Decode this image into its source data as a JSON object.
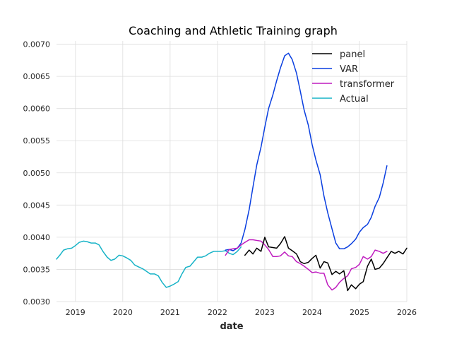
{
  "chart_data": {
    "type": "line",
    "title": "Coaching and Athletic Training graph",
    "xlabel": "date",
    "ylabel": "",
    "xlim": [
      2018.6,
      2026.0
    ],
    "ylim": [
      0.003,
      0.00705
    ],
    "x_ticks": [
      2019,
      2020,
      2021,
      2022,
      2023,
      2024,
      2025,
      2026
    ],
    "x_tick_labels": [
      "2019",
      "2020",
      "2021",
      "2022",
      "2023",
      "2024",
      "2025",
      "2026"
    ],
    "y_ticks": [
      0.003,
      0.0035,
      0.004,
      0.0045,
      0.005,
      0.0055,
      0.006,
      0.0065,
      0.007
    ],
    "y_tick_labels": [
      "0.0030",
      "0.0035",
      "0.0040",
      "0.0045",
      "0.0050",
      "0.0055",
      "0.0060",
      "0.0065",
      "0.0070"
    ],
    "grid": true,
    "legend_position": "top-right",
    "series": [
      {
        "name": "panel",
        "color": "#000000",
        "x": [
          2022.58,
          2022.67,
          2022.75,
          2022.83,
          2022.92,
          2023.0,
          2023.08,
          2023.17,
          2023.25,
          2023.33,
          2023.42,
          2023.5,
          2023.58,
          2023.67,
          2023.75,
          2023.83,
          2023.92,
          2024.0,
          2024.08,
          2024.17,
          2024.25,
          2024.33,
          2024.42,
          2024.5,
          2024.58,
          2024.67,
          2024.75,
          2024.83,
          2024.92,
          2025.0,
          2025.08,
          2025.17,
          2025.25,
          2025.33,
          2025.42,
          2025.5,
          2025.58,
          2025.67,
          2025.75,
          2025.83,
          2025.92,
          2026.0
        ],
        "y": [
          0.00372,
          0.0038,
          0.00374,
          0.00383,
          0.00378,
          0.004,
          0.00385,
          0.00384,
          0.00383,
          0.0039,
          0.00401,
          0.00383,
          0.00379,
          0.00374,
          0.00362,
          0.00359,
          0.00361,
          0.00367,
          0.00372,
          0.00352,
          0.00362,
          0.0036,
          0.00342,
          0.00347,
          0.00343,
          0.00348,
          0.00317,
          0.00326,
          0.0032,
          0.00327,
          0.00331,
          0.00355,
          0.00366,
          0.0035,
          0.00352,
          0.00359,
          0.00368,
          0.00378,
          0.00375,
          0.00378,
          0.00374,
          0.00383
        ]
      },
      {
        "name": "VAR",
        "color": "#0a3fe0",
        "x": [
          2022.17,
          2022.25,
          2022.33,
          2022.42,
          2022.5,
          2022.58,
          2022.67,
          2022.75,
          2022.83,
          2022.92,
          2023.0,
          2023.08,
          2023.17,
          2023.25,
          2023.33,
          2023.42,
          2023.5,
          2023.58,
          2023.67,
          2023.75,
          2023.83,
          2023.92,
          2024.0,
          2024.08,
          2024.17,
          2024.25,
          2024.33,
          2024.42,
          2024.5,
          2024.58,
          2024.67,
          2024.75,
          2024.83,
          2024.92,
          2025.0,
          2025.08,
          2025.17,
          2025.25,
          2025.33,
          2025.42,
          2025.5,
          2025.58
        ],
        "y": [
          0.0038,
          0.00381,
          0.00379,
          0.00383,
          0.00391,
          0.00412,
          0.00443,
          0.00478,
          0.00512,
          0.0054,
          0.00571,
          0.006,
          0.00621,
          0.00643,
          0.00663,
          0.00682,
          0.00686,
          0.00676,
          0.00655,
          0.00627,
          0.00598,
          0.00574,
          0.00544,
          0.0052,
          0.00497,
          0.00464,
          0.00438,
          0.00413,
          0.00391,
          0.00382,
          0.00382,
          0.00385,
          0.0039,
          0.00397,
          0.00408,
          0.00415,
          0.0042,
          0.00431,
          0.00448,
          0.00462,
          0.00484,
          0.00511
        ]
      },
      {
        "name": "transformer",
        "color": "#bf1cbf",
        "x": [
          2022.17,
          2022.25,
          2022.33,
          2022.42,
          2022.5,
          2022.58,
          2022.67,
          2022.75,
          2022.83,
          2022.92,
          2023.0,
          2023.08,
          2023.17,
          2023.25,
          2023.33,
          2023.42,
          2023.5,
          2023.58,
          2023.67,
          2023.75,
          2023.83,
          2023.92,
          2024.0,
          2024.08,
          2024.17,
          2024.25,
          2024.33,
          2024.42,
          2024.5,
          2024.58,
          2024.67,
          2024.75,
          2024.83,
          2024.92,
          2025.0,
          2025.08,
          2025.17,
          2025.25,
          2025.33,
          2025.42,
          2025.5,
          2025.58
        ],
        "y": [
          0.00372,
          0.00381,
          0.00382,
          0.00383,
          0.00388,
          0.00392,
          0.00396,
          0.00396,
          0.00395,
          0.00394,
          0.00388,
          0.00381,
          0.0037,
          0.0037,
          0.00371,
          0.00377,
          0.00371,
          0.0037,
          0.00362,
          0.00359,
          0.00355,
          0.0035,
          0.00345,
          0.00346,
          0.00344,
          0.00344,
          0.00326,
          0.00318,
          0.00322,
          0.0033,
          0.00336,
          0.0034,
          0.00351,
          0.00353,
          0.00358,
          0.0037,
          0.00366,
          0.0037,
          0.0038,
          0.00378,
          0.00375,
          0.00378
        ]
      },
      {
        "name": "Actual",
        "color": "#17b3c7",
        "x": [
          2018.6,
          2018.67,
          2018.75,
          2018.83,
          2018.92,
          2019.0,
          2019.08,
          2019.17,
          2019.25,
          2019.33,
          2019.42,
          2019.5,
          2019.58,
          2019.67,
          2019.75,
          2019.83,
          2019.92,
          2020.0,
          2020.08,
          2020.17,
          2020.25,
          2020.33,
          2020.42,
          2020.5,
          2020.58,
          2020.67,
          2020.75,
          2020.83,
          2020.92,
          2021.0,
          2021.08,
          2021.17,
          2021.25,
          2021.33,
          2021.42,
          2021.5,
          2021.58,
          2021.67,
          2021.75,
          2021.83,
          2021.92,
          2022.0,
          2022.08,
          2022.17,
          2022.25,
          2022.33,
          2022.42,
          2022.5
        ],
        "y": [
          0.00366,
          0.00372,
          0.0038,
          0.00382,
          0.00383,
          0.00387,
          0.00392,
          0.00394,
          0.00393,
          0.00391,
          0.00391,
          0.00388,
          0.00378,
          0.00369,
          0.00364,
          0.00366,
          0.00372,
          0.00371,
          0.00368,
          0.00364,
          0.00357,
          0.00354,
          0.00351,
          0.00347,
          0.00343,
          0.00343,
          0.0034,
          0.0033,
          0.00322,
          0.00324,
          0.00327,
          0.00331,
          0.00343,
          0.00353,
          0.00355,
          0.00362,
          0.00369,
          0.00369,
          0.00371,
          0.00375,
          0.00378,
          0.00378,
          0.00378,
          0.00379,
          0.00375,
          0.00373,
          0.00378,
          0.00385
        ]
      }
    ]
  }
}
